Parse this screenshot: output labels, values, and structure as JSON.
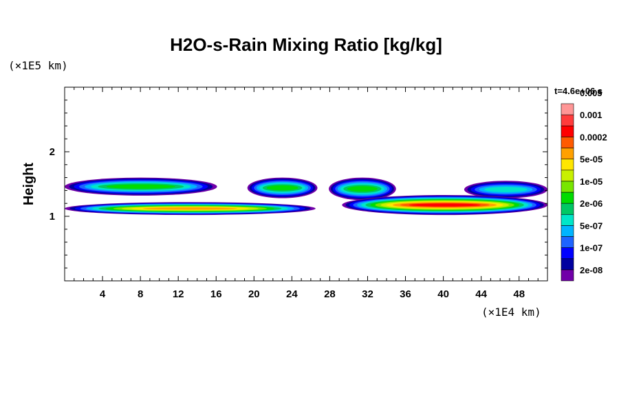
{
  "chart_data": {
    "type": "heatmap",
    "title": "H2O-s-Rain Mixing Ratio [kg/kg]",
    "ylabel": "Height",
    "xlabel": "",
    "x_unit": "(×1E4 km)",
    "y_unit": "(×1E5 km)",
    "time_label": "t=4.6e+06 s",
    "xlim": [
      0,
      51
    ],
    "ylim": [
      0,
      3
    ],
    "x_ticks": [
      4,
      8,
      12,
      16,
      20,
      24,
      28,
      32,
      36,
      40,
      44,
      48
    ],
    "y_ticks": [
      1,
      2
    ],
    "colorbar_levels": [
      "2e-08",
      "1e-07",
      "5e-07",
      "2e-06",
      "1e-05",
      "5e-05",
      "0.0002",
      "0.001",
      "0.005"
    ],
    "colorbar_colors": [
      "#7000a8",
      "#0000a0",
      "#0000ff",
      "#1e64ff",
      "#00b4ff",
      "#00e6c8",
      "#00c864",
      "#00dc00",
      "#78e600",
      "#c8f000",
      "#ffe600",
      "#ffa000",
      "#ff5a00",
      "#ff0000",
      "#ff3c3c",
      "#ff9696"
    ],
    "cloud_layers": [
      {
        "x_range": [
          0.0,
          16.1
        ],
        "height_range": [
          1.32,
          1.6
        ],
        "peak_level": "2e-06"
      },
      {
        "x_range": [
          19.3,
          26.7
        ],
        "height_range": [
          1.28,
          1.6
        ],
        "peak_level": "2e-06"
      },
      {
        "x_range": [
          27.9,
          35.0
        ],
        "height_range": [
          1.25,
          1.6
        ],
        "peak_level": "2e-06"
      },
      {
        "x_range": [
          42.2,
          51.0
        ],
        "height_range": [
          1.28,
          1.55
        ],
        "peak_level": "5e-07"
      },
      {
        "x_range": [
          0.0,
          26.5
        ],
        "height_range": [
          1.02,
          1.22
        ],
        "peak_level": "5e-05"
      },
      {
        "x_range": [
          29.3,
          51.0
        ],
        "height_range": [
          1.02,
          1.33
        ],
        "peak_level": "0.0002"
      }
    ]
  }
}
